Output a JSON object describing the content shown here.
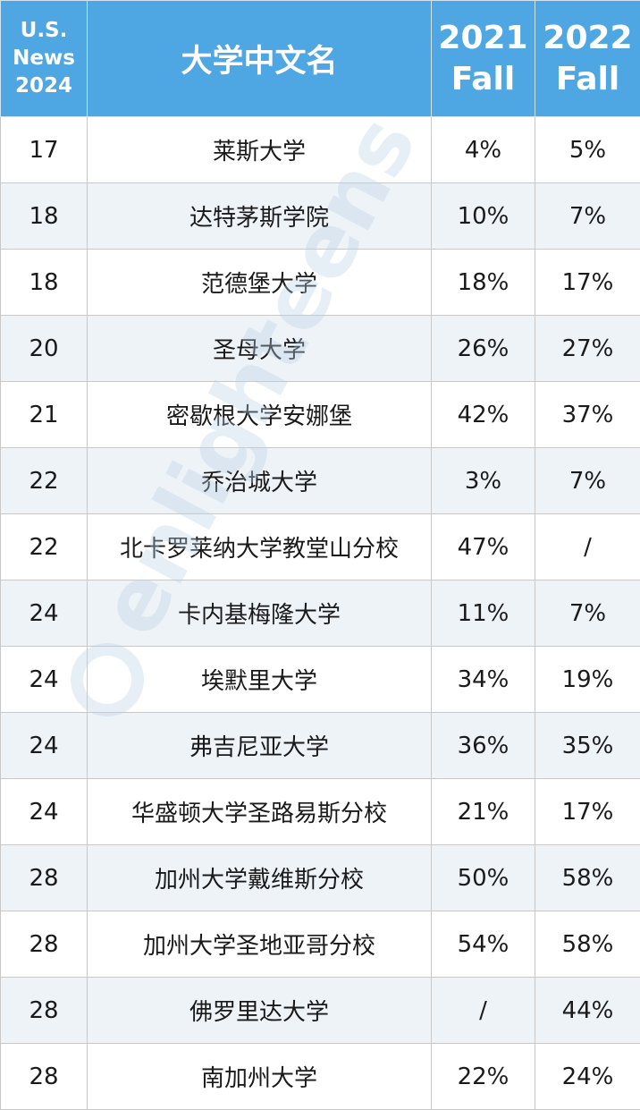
{
  "header": {
    "rank_line1": "U.S.",
    "rank_line2": "News",
    "rank_line3": "2024",
    "name": "大学中文名",
    "col_2021_year": "2021",
    "col_2021_term": "Fall",
    "col_2022_year": "2022",
    "col_2022_term": "Fall"
  },
  "rows": [
    {
      "rank": "17",
      "name": "莱斯大学",
      "fall_2021": "4%",
      "fall_2022": "5%"
    },
    {
      "rank": "18",
      "name": "达特茅斯学院",
      "fall_2021": "10%",
      "fall_2022": "7%"
    },
    {
      "rank": "18",
      "name": "范德堡大学",
      "fall_2021": "18%",
      "fall_2022": "17%"
    },
    {
      "rank": "20",
      "name": "圣母大学",
      "fall_2021": "26%",
      "fall_2022": "27%"
    },
    {
      "rank": "21",
      "name": "密歇根大学安娜堡",
      "fall_2021": "42%",
      "fall_2022": "37%"
    },
    {
      "rank": "22",
      "name": "乔治城大学",
      "fall_2021": "3%",
      "fall_2022": "7%"
    },
    {
      "rank": "22",
      "name": "北卡罗莱纳大学教堂山分校",
      "fall_2021": "47%",
      "fall_2022": "/"
    },
    {
      "rank": "24",
      "name": "卡内基梅隆大学",
      "fall_2021": "11%",
      "fall_2022": "7%"
    },
    {
      "rank": "24",
      "name": "埃默里大学",
      "fall_2021": "34%",
      "fall_2022": "19%"
    },
    {
      "rank": "24",
      "name": "弗吉尼亚大学",
      "fall_2021": "36%",
      "fall_2022": "35%"
    },
    {
      "rank": "24",
      "name": "华盛顿大学圣路易斯分校",
      "fall_2021": "21%",
      "fall_2022": "17%"
    },
    {
      "rank": "28",
      "name": "加州大学戴维斯分校",
      "fall_2021": "50%",
      "fall_2022": "58%"
    },
    {
      "rank": "28",
      "name": "加州大学圣地亚哥分校",
      "fall_2021": "54%",
      "fall_2022": "58%"
    },
    {
      "rank": "28",
      "name": "佛罗里达大学",
      "fall_2021": "/",
      "fall_2022": "44%"
    },
    {
      "rank": "28",
      "name": "南加州大学",
      "fall_2021": "22%",
      "fall_2022": "24%"
    }
  ],
  "watermark": {
    "text": "enlighteens",
    "color": "#b9cfe6"
  },
  "colors": {
    "header_bg": "#4ea6e3",
    "header_text": "#ffffff",
    "stripe_bg": "#eef3f8"
  }
}
